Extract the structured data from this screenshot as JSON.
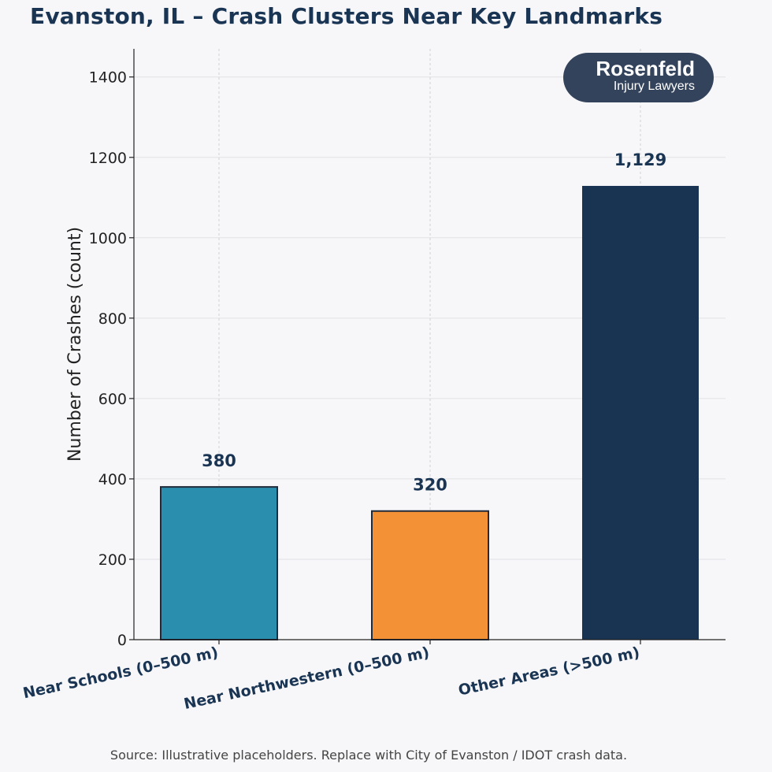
{
  "chart_data": {
    "type": "bar",
    "title": "Evanston, IL – Crash Clusters Near Key Landmarks",
    "xlabel": "",
    "ylabel": "Number of Crashes (count)",
    "ylim": [
      0,
      1470
    ],
    "yticks": [
      0,
      200,
      400,
      600,
      800,
      1000,
      1200,
      1400
    ],
    "grid": true,
    "categories": [
      "Near Schools (0–500 m)",
      "Near Northwestern (0–500 m)",
      "Other Areas (>500 m)"
    ],
    "values": [
      380,
      320,
      1129
    ],
    "value_labels": [
      "380",
      "320",
      "1,129"
    ],
    "colors": [
      "#2a8eae",
      "#f29135",
      "#193452"
    ],
    "source": "Source: Illustrative placeholders. Replace with City of Evanston / IDOT crash data."
  },
  "logo": {
    "main": "Rosenfeld",
    "sub": "Injury Lawyers"
  }
}
